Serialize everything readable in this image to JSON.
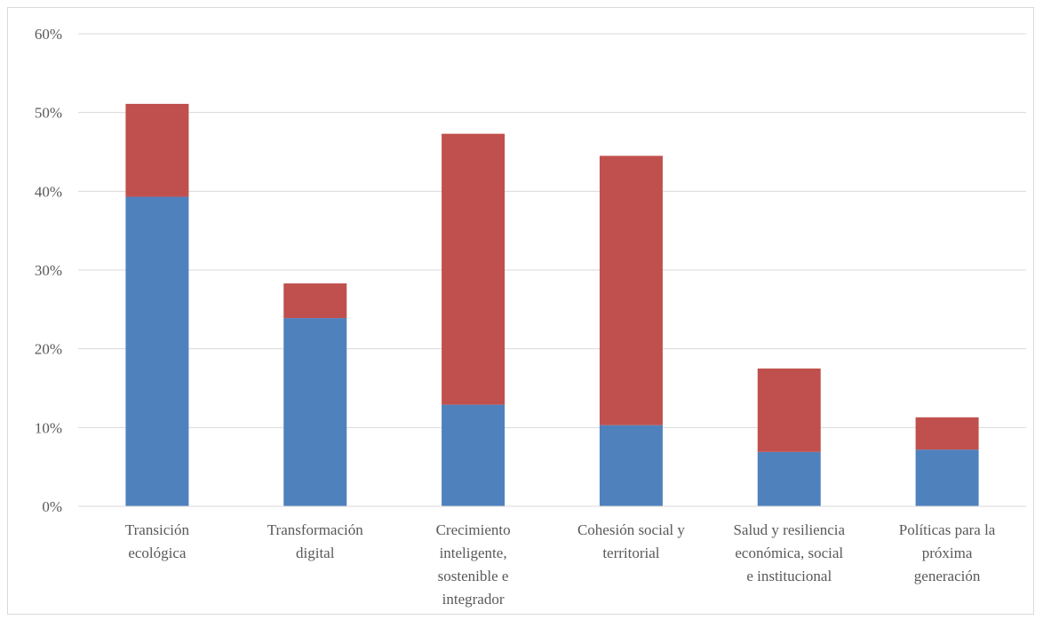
{
  "chart_data": {
    "type": "bar",
    "stacked": true,
    "categories": [
      [
        "Transición",
        "ecológica"
      ],
      [
        "Transformación",
        "digital"
      ],
      [
        "Crecimiento",
        "inteligente,",
        "sostenible e",
        "integrador"
      ],
      [
        "Cohesión social y",
        "territorial"
      ],
      [
        "Salud y resiliencia",
        "económica, social",
        "e institucional"
      ],
      [
        "Políticas para la",
        "próxima",
        "generación"
      ]
    ],
    "series": [
      {
        "color": "#4f81bd",
        "values": [
          39.3,
          23.9,
          12.9,
          10.3,
          6.9,
          7.2
        ]
      },
      {
        "color": "#c0504d",
        "values": [
          11.8,
          4.4,
          34.4,
          34.2,
          10.6,
          4.1
        ]
      }
    ],
    "ylim": [
      0,
      60
    ],
    "yticks": [
      "0%",
      "10%",
      "20%",
      "30%",
      "40%",
      "50%",
      "60%"
    ],
    "grid": true,
    "gridColor": "#d9d9d9",
    "legend": "none"
  }
}
